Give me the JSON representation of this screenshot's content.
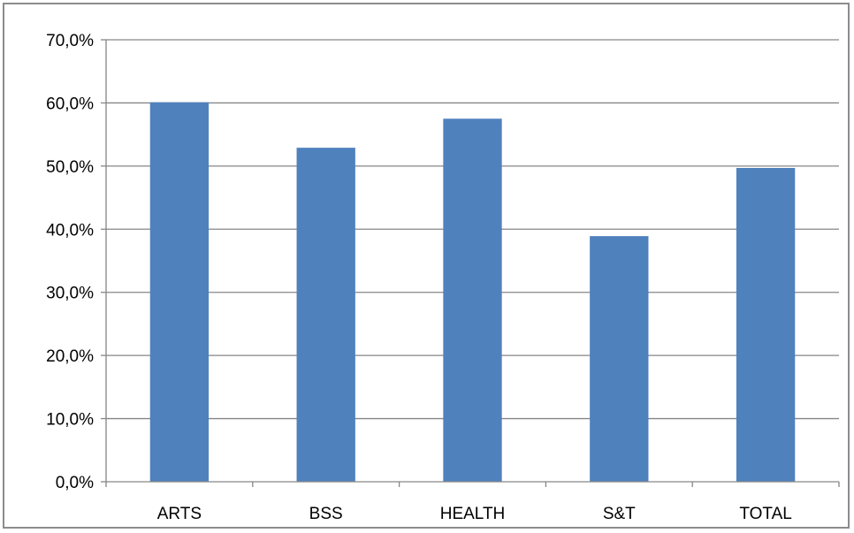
{
  "chart_data": {
    "type": "bar",
    "categories": [
      "ARTS",
      "BSS",
      "HEALTH",
      "S&T",
      "TOTAL"
    ],
    "values": [
      60.1,
      52.9,
      57.5,
      38.9,
      49.7
    ],
    "title": "",
    "xlabel": "",
    "ylabel": "",
    "ylim": [
      0,
      70
    ],
    "y_ticks": [
      0,
      10,
      20,
      30,
      40,
      50,
      60,
      70
    ],
    "y_tick_labels": [
      "0,0%",
      "10,0%",
      "20,0%",
      "30,0%",
      "40,0%",
      "50,0%",
      "60,0%",
      "70,0%"
    ],
    "grid": true,
    "legend": "none",
    "bar_color": "#4f81bd",
    "grid_color": "#868686"
  }
}
